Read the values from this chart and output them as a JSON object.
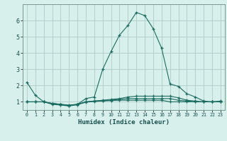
{
  "xlabel": "Humidex (Indice chaleur)",
  "background_color": "#d8f0ec",
  "grid_color": "#b0ccc8",
  "line_color": "#1a6b60",
  "yticks": [
    1,
    2,
    3,
    4,
    5,
    6
  ],
  "ylim": [
    0.5,
    7.0
  ],
  "xlim": [
    -0.5,
    23.5
  ],
  "series": [
    {
      "x": [
        0,
        1,
        2,
        3,
        4,
        5,
        6,
        7,
        8,
        9,
        10,
        11,
        12,
        13,
        14,
        15,
        16,
        17,
        18,
        19,
        20,
        21,
        22,
        23
      ],
      "y": [
        2.2,
        1.4,
        1.0,
        0.85,
        0.8,
        0.75,
        0.85,
        1.2,
        1.3,
        3.0,
        4.1,
        5.1,
        5.7,
        6.5,
        6.3,
        5.5,
        4.3,
        2.1,
        1.95,
        1.5,
        1.3,
        1.05,
        1.0,
        1.05
      ]
    },
    {
      "x": [
        0,
        1,
        2,
        3,
        4,
        5,
        6,
        7,
        8,
        9,
        10,
        11,
        12,
        13,
        14,
        15,
        16,
        17,
        18,
        19,
        20,
        21,
        22,
        23
      ],
      "y": [
        1.0,
        1.0,
        1.0,
        0.9,
        0.85,
        0.8,
        0.85,
        1.0,
        1.05,
        1.1,
        1.15,
        1.2,
        1.3,
        1.35,
        1.35,
        1.35,
        1.35,
        1.35,
        1.25,
        1.1,
        1.05,
        1.0,
        1.0,
        1.0
      ]
    },
    {
      "x": [
        0,
        1,
        2,
        3,
        4,
        5,
        6,
        7,
        8,
        9,
        10,
        11,
        12,
        13,
        14,
        15,
        16,
        17,
        18,
        19,
        20,
        21,
        22,
        23
      ],
      "y": [
        1.0,
        1.0,
        1.0,
        0.9,
        0.85,
        0.78,
        0.85,
        1.0,
        1.05,
        1.08,
        1.1,
        1.15,
        1.2,
        1.2,
        1.2,
        1.2,
        1.2,
        1.2,
        1.1,
        1.05,
        1.0,
        1.0,
        1.0,
        1.0
      ]
    },
    {
      "x": [
        0,
        1,
        2,
        3,
        4,
        5,
        6,
        7,
        8,
        9,
        10,
        11,
        12,
        13,
        14,
        15,
        16,
        17,
        18,
        19,
        20,
        21,
        22,
        23
      ],
      "y": [
        1.0,
        1.0,
        1.0,
        0.9,
        0.85,
        0.75,
        0.82,
        0.98,
        1.02,
        1.05,
        1.08,
        1.1,
        1.1,
        1.1,
        1.1,
        1.1,
        1.1,
        1.0,
        1.0,
        1.0,
        1.0,
        1.0,
        1.0,
        1.0
      ]
    }
  ]
}
